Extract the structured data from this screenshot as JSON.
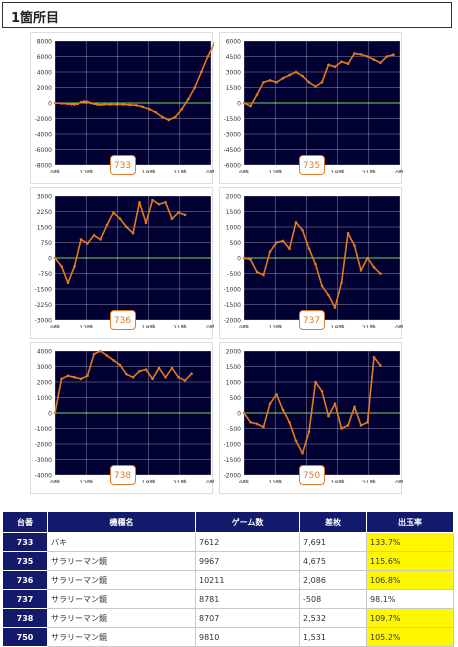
{
  "page": {
    "title": "1箇所目"
  },
  "chart_data": [
    {
      "type": "line",
      "id": "733",
      "x_ticks": [
        "9時",
        "12時",
        "15時",
        "18時",
        "21時",
        "0時"
      ],
      "y_ticks": [
        "8000",
        "6000",
        "4000",
        "2000",
        "0",
        "-2000",
        "-4000",
        "-6000",
        "-8000"
      ],
      "ylim": [
        -8000,
        8000
      ],
      "x": [
        0,
        2,
        4,
        5,
        6,
        7,
        8,
        9,
        10,
        11,
        12,
        13,
        14,
        15,
        17,
        19,
        21,
        23,
        25,
        27,
        29,
        31,
        33,
        35,
        37,
        39,
        41,
        43,
        45,
        47,
        49
      ],
      "values": [
        0,
        -50,
        -100,
        -150,
        -200,
        -100,
        100,
        200,
        150,
        0,
        -100,
        -200,
        -250,
        -200,
        -200,
        -200,
        -200,
        -250,
        -300,
        -500,
        -800,
        -1200,
        -1800,
        -2200,
        -1800,
        -800,
        500,
        2000,
        4000,
        6000,
        7700
      ]
    },
    {
      "type": "line",
      "id": "735",
      "x_ticks": [
        "9時",
        "12時",
        "15時",
        "18時",
        "21時",
        "0時"
      ],
      "y_ticks": [
        "6000",
        "4500",
        "3000",
        "1500",
        "0",
        "-1500",
        "-3000",
        "-4500",
        "-6000"
      ],
      "ylim": [
        -6000,
        6000
      ],
      "x": [
        0,
        2,
        4,
        6,
        8,
        10,
        12,
        14,
        16,
        18,
        20,
        22,
        24,
        26,
        28,
        30,
        32,
        34,
        36,
        38,
        40,
        42,
        44,
        46
      ],
      "values": [
        0,
        -300,
        800,
        2000,
        2200,
        2000,
        2400,
        2700,
        3000,
        2600,
        2000,
        1600,
        2000,
        3700,
        3500,
        4000,
        3800,
        4800,
        4700,
        4500,
        4200,
        3900,
        4500,
        4675
      ]
    },
    {
      "type": "line",
      "id": "736",
      "x_ticks": [
        "9時",
        "12時",
        "15時",
        "18時",
        "21時",
        "0時"
      ],
      "y_ticks": [
        "3000",
        "2250",
        "1500",
        "750",
        "0",
        "-750",
        "-1500",
        "-2250",
        "-3000"
      ],
      "ylim": [
        -3000,
        3000
      ],
      "x": [
        0,
        2,
        4,
        6,
        8,
        10,
        12,
        14,
        16,
        18,
        20,
        22,
        24,
        26,
        28,
        30,
        32,
        34,
        36,
        38,
        40
      ],
      "values": [
        0,
        -400,
        -1200,
        -400,
        900,
        700,
        1100,
        900,
        1600,
        2200,
        1900,
        1500,
        1200,
        2700,
        1700,
        2800,
        2600,
        2700,
        1900,
        2200,
        2086
      ]
    },
    {
      "type": "line",
      "id": "737",
      "x_ticks": [
        "9時",
        "12時",
        "15時",
        "18時",
        "21時",
        "0時"
      ],
      "y_ticks": [
        "2000",
        "1500",
        "1000",
        "500",
        "0",
        "-500",
        "-1000",
        "-1500",
        "-2000"
      ],
      "ylim": [
        -2000,
        2000
      ],
      "x": [
        0,
        2,
        4,
        6,
        8,
        10,
        12,
        14,
        16,
        18,
        20,
        22,
        24,
        26,
        28,
        30,
        32,
        34,
        36,
        38,
        40,
        42
      ],
      "values": [
        0,
        -50,
        -450,
        -550,
        200,
        500,
        550,
        300,
        1150,
        900,
        300,
        -200,
        -900,
        -1200,
        -1600,
        -800,
        800,
        400,
        -400,
        0,
        -300,
        -508
      ]
    },
    {
      "type": "line",
      "id": "738",
      "x_ticks": [
        "9時",
        "12時",
        "15時",
        "18時",
        "21時",
        "0時"
      ],
      "y_ticks": [
        "4000",
        "3000",
        "2000",
        "1000",
        "0",
        "-1000",
        "-2000",
        "-3000",
        "-4000"
      ],
      "ylim": [
        -4000,
        4000
      ],
      "x": [
        0,
        2,
        4,
        6,
        8,
        10,
        12,
        14,
        16,
        18,
        20,
        22,
        24,
        26,
        28,
        30,
        32,
        34,
        36,
        38,
        40,
        42
      ],
      "values": [
        0,
        2200,
        2400,
        2300,
        2200,
        2400,
        3800,
        4000,
        3700,
        3400,
        3100,
        2500,
        2300,
        2700,
        2800,
        2200,
        2900,
        2300,
        2900,
        2300,
        2100,
        2532
      ]
    },
    {
      "type": "line",
      "id": "750",
      "x_ticks": [
        "9時",
        "12時",
        "15時",
        "18時",
        "21時",
        "0時"
      ],
      "y_ticks": [
        "2000",
        "1500",
        "1000",
        "500",
        "0",
        "-500",
        "-1000",
        "-1500",
        "-2000"
      ],
      "ylim": [
        -2000,
        2000
      ],
      "x": [
        0,
        2,
        4,
        6,
        8,
        10,
        12,
        14,
        16,
        18,
        20,
        22,
        24,
        26,
        28,
        30,
        32,
        34,
        36,
        38,
        40,
        42
      ],
      "values": [
        0,
        -300,
        -350,
        -450,
        300,
        600,
        100,
        -300,
        -900,
        -1300,
        -600,
        1000,
        700,
        -100,
        300,
        -500,
        -400,
        200,
        -400,
        -300,
        1800,
        1531
      ]
    }
  ],
  "table": {
    "headers": [
      "台番",
      "機種名",
      "ゲーム数",
      "差枚",
      "出玉率"
    ],
    "rows": [
      {
        "id": "733",
        "name": "バキ",
        "games": "7612",
        "diff": "7,691",
        "rate": "133.7%",
        "neg": false,
        "highlight": true
      },
      {
        "id": "735",
        "name": "サラリーマン鏡",
        "games": "9967",
        "diff": "4,675",
        "rate": "115.6%",
        "neg": false,
        "highlight": true
      },
      {
        "id": "736",
        "name": "サラリーマン鏡",
        "games": "10211",
        "diff": "2,086",
        "rate": "106.8%",
        "neg": false,
        "highlight": true
      },
      {
        "id": "737",
        "name": "サラリーマン鏡",
        "games": "8781",
        "diff": "-508",
        "rate": "98.1%",
        "neg": true,
        "highlight": false
      },
      {
        "id": "738",
        "name": "サラリーマン鏡",
        "games": "8707",
        "diff": "2,532",
        "rate": "109.7%",
        "neg": false,
        "highlight": true
      },
      {
        "id": "750",
        "name": "サラリーマン鏡",
        "games": "9810",
        "diff": "1,531",
        "rate": "105.2%",
        "neg": false,
        "highlight": true
      }
    ]
  },
  "colors": {
    "plot_bg": "#000033",
    "grid": "#ffffff",
    "zero_line": "#7fd34a",
    "series": "#e8781e",
    "badge": "#e07a2a",
    "table_head": "#141a6b",
    "highlight": "#fff700",
    "negative": "#e8201c"
  }
}
